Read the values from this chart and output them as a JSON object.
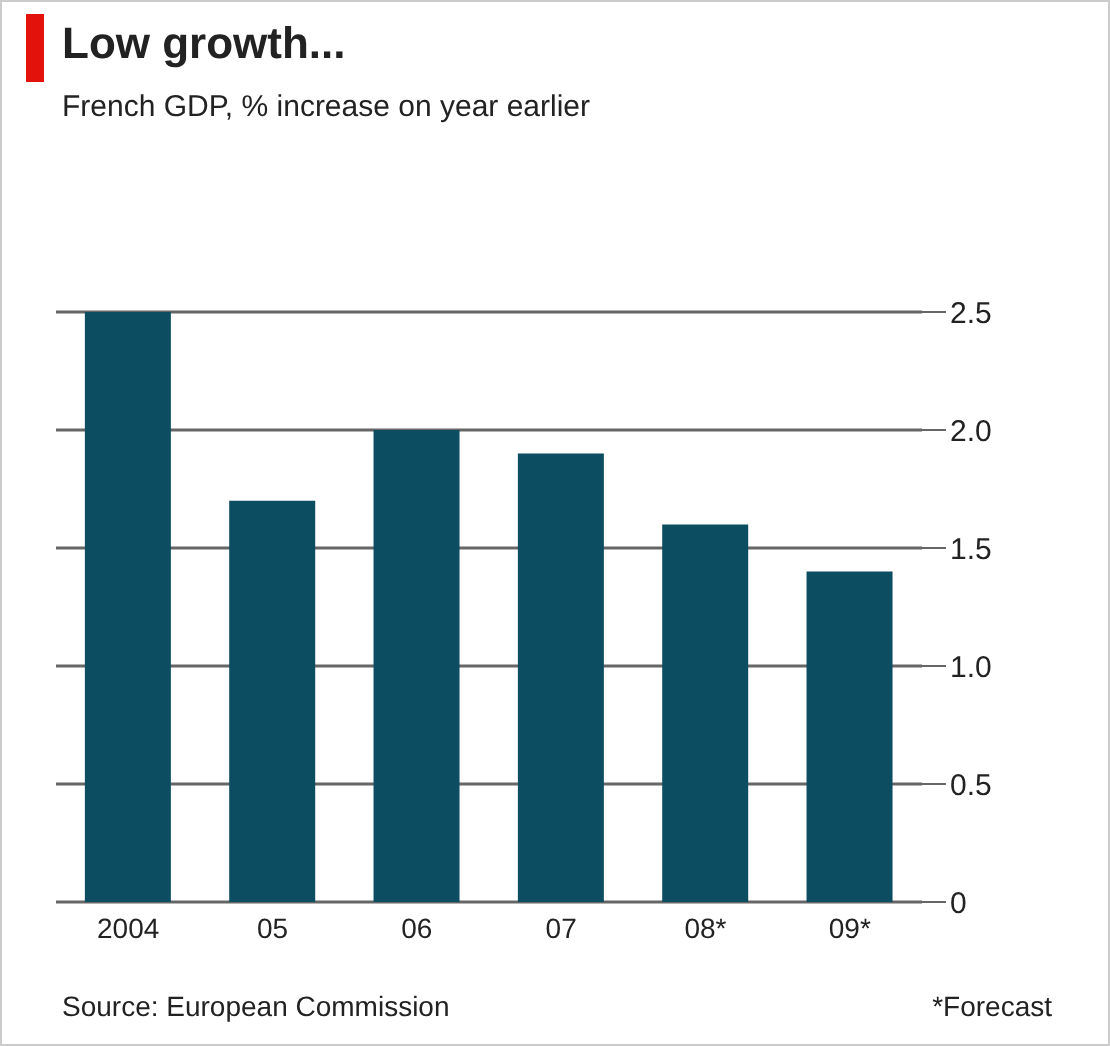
{
  "chart_data": {
    "type": "bar",
    "title": "Low growth...",
    "subtitle": "French GDP, % increase on year earlier",
    "categories": [
      "2004",
      "05",
      "06",
      "07",
      "08*",
      "09*"
    ],
    "values": [
      2.5,
      1.7,
      2.0,
      1.9,
      1.6,
      1.4
    ],
    "color": "#0c4d62",
    "ylim": [
      0,
      2.5
    ],
    "yticks": [
      0,
      0.5,
      {
        "value": 1,
        "label": "1.0"
      },
      1.5,
      {
        "value": 2,
        "label": "2.0"
      },
      2.5
    ],
    "grid": "y",
    "annotations": [
      "Source: European Commission",
      "*Forecast"
    ]
  }
}
